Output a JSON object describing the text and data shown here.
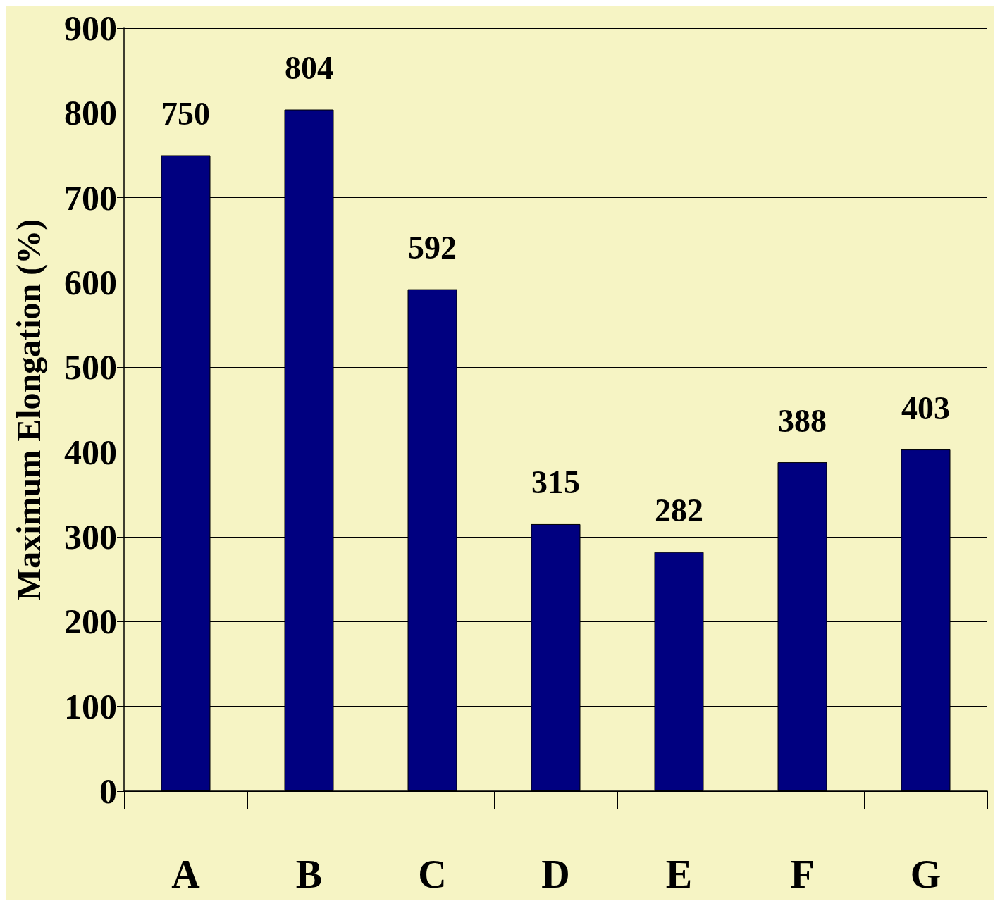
{
  "chart_data": {
    "type": "bar",
    "ylabel": "Maximum Elongation (%)",
    "categories": [
      "A",
      "B",
      "C",
      "D",
      "E",
      "F",
      "G"
    ],
    "values": [
      750,
      804,
      592,
      315,
      282,
      388,
      403
    ],
    "color": "#000080",
    "ylim": [
      0,
      900
    ],
    "yticks": [
      0,
      100,
      200,
      300,
      400,
      500,
      600,
      700,
      800,
      900
    ],
    "grid": "y",
    "data_labels": true
  }
}
